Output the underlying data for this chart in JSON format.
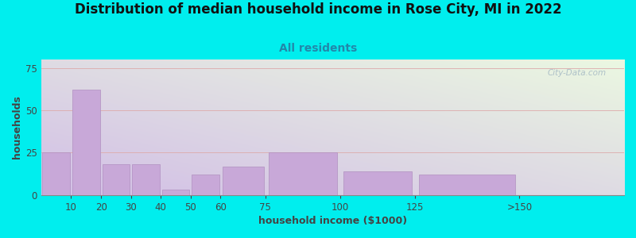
{
  "title": "Distribution of median household income in Rose City, MI in 2022",
  "subtitle": "All residents",
  "xlabel": "household income ($1000)",
  "ylabel": "households",
  "background_color": "#00EEEE",
  "bar_color": "#c8a8d8",
  "bar_edge_color": "#b090c0",
  "categories": [
    "10",
    "20",
    "30",
    "40",
    "50",
    "60",
    "75",
    "100",
    "125",
    ">150"
  ],
  "bin_lefts": [
    0,
    10,
    20,
    30,
    40,
    50,
    60,
    75,
    100,
    125
  ],
  "bin_widths": [
    10,
    10,
    10,
    10,
    10,
    10,
    15,
    25,
    25,
    35
  ],
  "values": [
    25,
    62,
    18,
    18,
    3,
    12,
    17,
    25,
    14,
    12
  ],
  "ylim": [
    0,
    80
  ],
  "yticks": [
    0,
    25,
    50,
    75
  ],
  "xtick_positions": [
    10,
    20,
    30,
    40,
    50,
    60,
    75,
    100,
    125,
    160
  ],
  "xtick_labels": [
    "10",
    "20",
    "30",
    "40",
    "50",
    "60",
    "75",
    "100",
    "125",
    ">150"
  ],
  "watermark": "City-Data.com",
  "title_fontsize": 12,
  "subtitle_fontsize": 10,
  "axis_label_fontsize": 9,
  "tick_fontsize": 8.5
}
